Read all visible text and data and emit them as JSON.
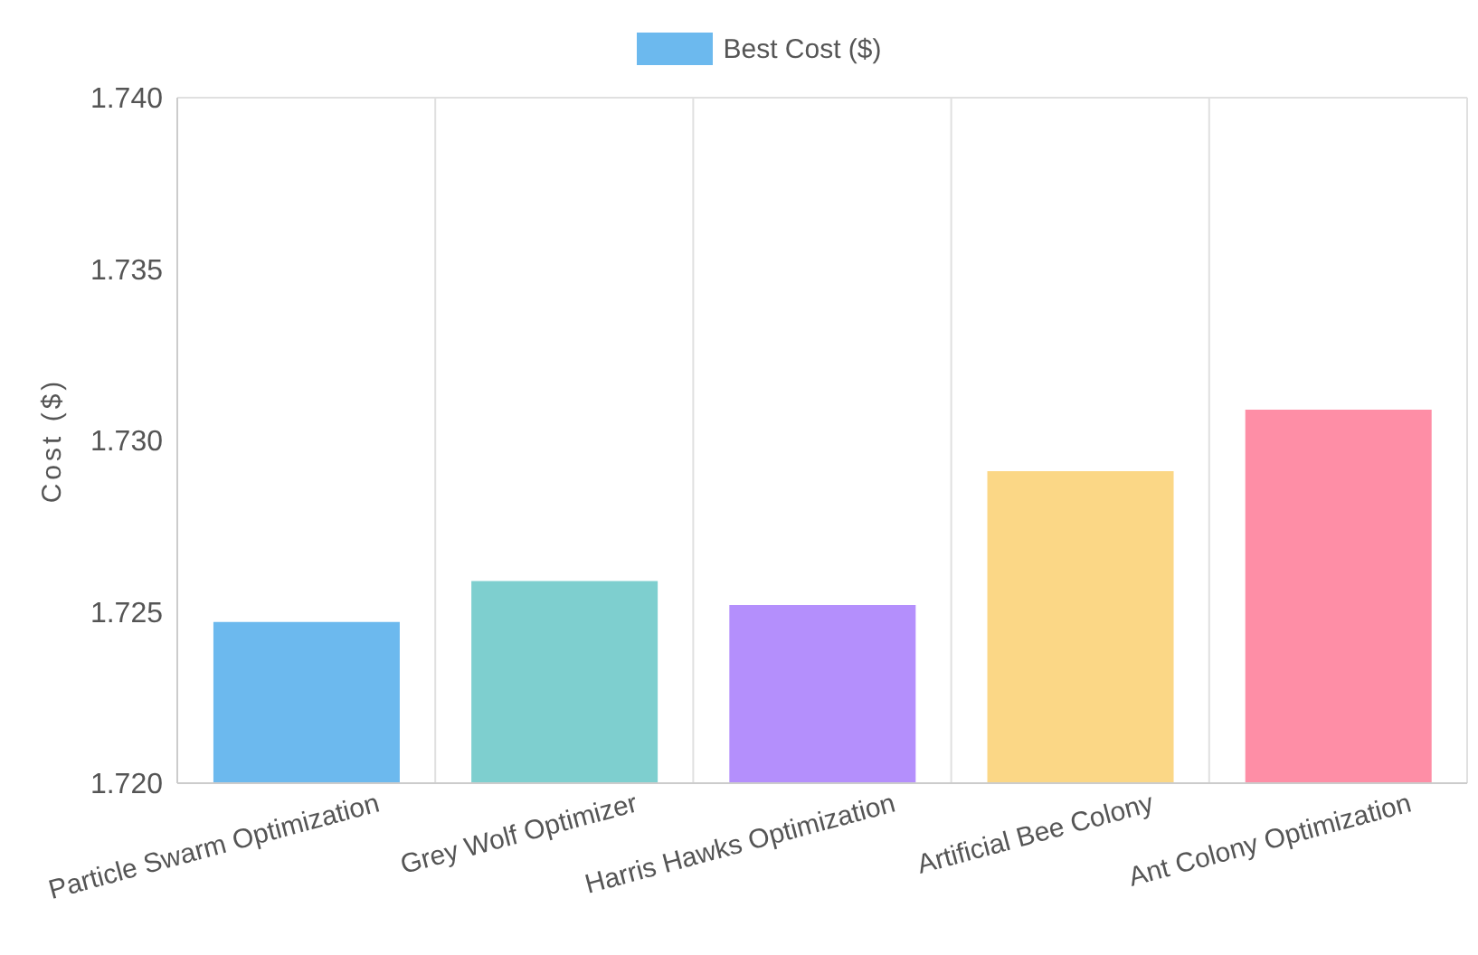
{
  "chart_data": {
    "type": "bar",
    "ylabel": "Cost ($)",
    "categories": [
      "Particle Swarm Optimization",
      "Grey Wolf Optimizer",
      "Harris Hawks Optimization",
      "Artificial Bee Colony",
      "Ant Colony Optimization"
    ],
    "series": [
      {
        "name": "Best Cost ($)",
        "color": "#6cb9ee",
        "colors": [
          "#6cb9ee",
          "#7ecfcf",
          "#b48ffc",
          "#fbd786",
          "#fe8ea6"
        ],
        "values": [
          1.7247,
          1.7259,
          1.7252,
          1.7291,
          1.7309
        ]
      }
    ],
    "ylim": [
      1.72,
      1.74
    ],
    "yticks": [
      {
        "value": 1.72,
        "label": "1.720"
      },
      {
        "value": 1.725,
        "label": "1.725"
      },
      {
        "value": 1.73,
        "label": "1.730"
      },
      {
        "value": 1.735,
        "label": "1.735"
      },
      {
        "value": 1.74,
        "label": "1.740"
      }
    ],
    "grid": true,
    "legend": "top"
  }
}
